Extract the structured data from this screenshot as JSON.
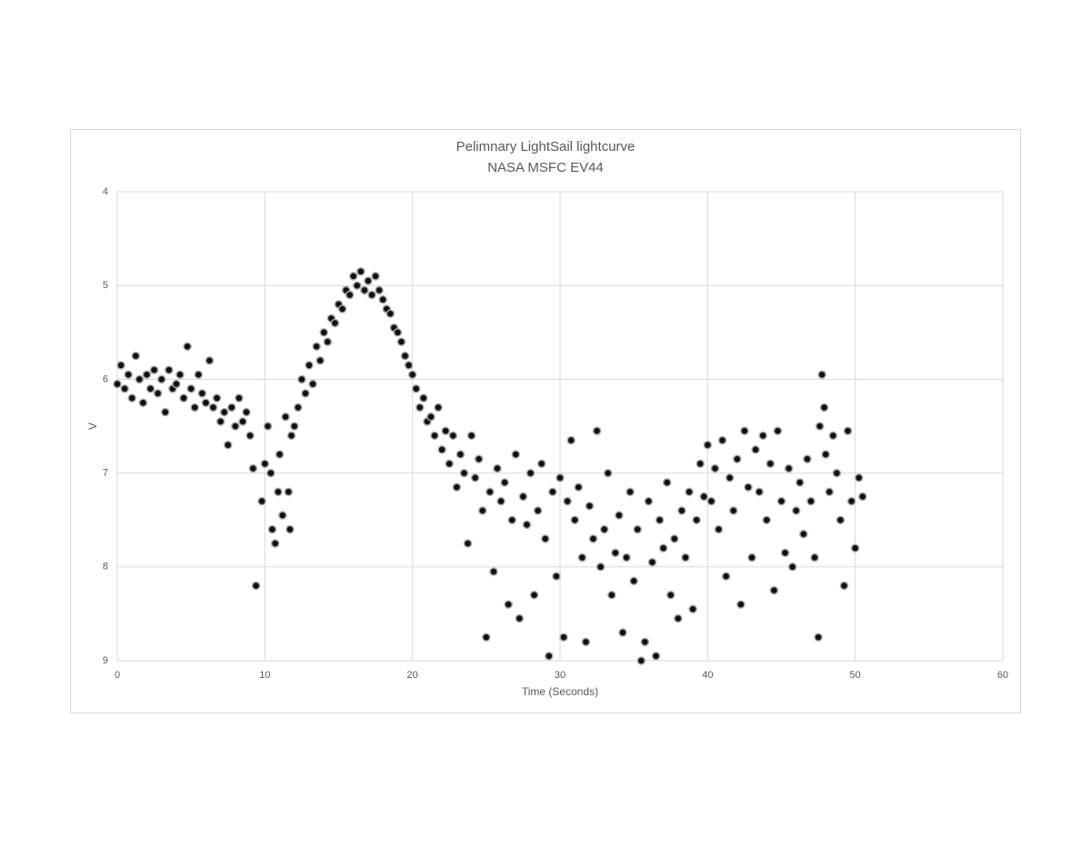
{
  "chart_data": {
    "type": "scatter",
    "title": "Pelimnary LightSail lightcurve",
    "subtitle": "NASA MSFC EV44",
    "x_label": "Time (Seconds)",
    "y_label": "V",
    "xlim": [
      0,
      60
    ],
    "xticks": [
      0,
      10,
      20,
      30,
      40,
      50,
      60
    ],
    "ylim": [
      4,
      9
    ],
    "yticks": [
      4,
      5,
      6,
      7,
      8,
      9
    ],
    "y_inverted": true,
    "grid": true,
    "color": "#111111",
    "edgecolor": "#a6a6a6",
    "x": [
      0.0,
      0.25,
      0.5,
      0.75,
      1.0,
      1.25,
      1.5,
      1.75,
      2.0,
      2.25,
      2.5,
      2.75,
      3.0,
      3.25,
      3.5,
      3.75,
      4.0,
      4.25,
      4.5,
      4.75,
      5.0,
      5.25,
      5.5,
      5.75,
      6.0,
      6.25,
      6.5,
      6.75,
      7.0,
      7.25,
      7.5,
      7.75,
      8.0,
      8.25,
      8.5,
      8.75,
      9.0,
      9.2,
      9.4,
      9.8,
      10.0,
      10.2,
      10.4,
      10.5,
      10.7,
      10.9,
      11.0,
      11.2,
      11.4,
      11.6,
      11.7,
      11.8,
      12.0,
      12.25,
      12.5,
      12.75,
      13.0,
      13.25,
      13.5,
      13.75,
      14.0,
      14.25,
      14.5,
      14.75,
      15.0,
      15.25,
      15.5,
      15.75,
      16.0,
      16.25,
      16.5,
      16.75,
      17.0,
      17.25,
      17.5,
      17.75,
      18.0,
      18.25,
      18.5,
      18.75,
      19.0,
      19.25,
      19.5,
      19.75,
      20.0,
      20.25,
      20.5,
      20.75,
      21.0,
      21.25,
      21.5,
      21.75,
      22.0,
      22.25,
      22.5,
      22.75,
      23.0,
      23.25,
      23.5,
      23.75,
      24.0,
      24.25,
      24.5,
      24.75,
      25.0,
      25.25,
      25.5,
      25.75,
      26.0,
      26.25,
      26.5,
      26.75,
      27.0,
      27.25,
      27.5,
      27.75,
      28.0,
      28.25,
      28.5,
      28.75,
      29.0,
      29.25,
      29.5,
      29.75,
      30.0,
      30.25,
      30.5,
      30.75,
      31.0,
      31.25,
      31.5,
      31.75,
      32.0,
      32.25,
      32.5,
      32.75,
      33.0,
      33.25,
      33.5,
      33.75,
      34.0,
      34.25,
      34.5,
      34.75,
      35.0,
      35.25,
      35.5,
      35.75,
      36.0,
      36.25,
      36.5,
      36.75,
      37.0,
      37.25,
      37.5,
      37.75,
      38.0,
      38.25,
      38.5,
      38.75,
      39.0,
      39.25,
      39.5,
      39.75,
      40.0,
      40.25,
      40.5,
      40.75,
      41.0,
      41.25,
      41.5,
      41.75,
      42.0,
      42.25,
      42.5,
      42.75,
      43.0,
      43.25,
      43.5,
      43.75,
      44.0,
      44.25,
      44.5,
      44.75,
      45.0,
      45.25,
      45.5,
      45.75,
      46.0,
      46.25,
      46.5,
      46.75,
      47.0,
      47.25,
      47.5,
      47.6,
      47.75,
      47.9,
      48.0,
      48.25,
      48.5,
      48.75,
      49.0,
      49.25,
      49.5,
      49.75,
      50.0,
      50.25,
      50.5
    ],
    "values": [
      6.05,
      5.85,
      6.1,
      5.95,
      6.2,
      5.75,
      6.0,
      6.25,
      5.95,
      6.1,
      5.9,
      6.15,
      6.0,
      6.35,
      5.9,
      6.1,
      6.05,
      5.95,
      6.2,
      5.65,
      6.1,
      6.3,
      5.95,
      6.15,
      6.25,
      5.8,
      6.3,
      6.2,
      6.45,
      6.35,
      6.7,
      6.3,
      6.5,
      6.2,
      6.45,
      6.35,
      6.6,
      6.95,
      8.2,
      7.3,
      6.9,
      6.5,
      7.0,
      7.6,
      7.75,
      7.2,
      6.8,
      7.45,
      6.4,
      7.2,
      7.6,
      6.6,
      6.5,
      6.3,
      6.0,
      6.15,
      5.85,
      6.05,
      5.65,
      5.8,
      5.5,
      5.6,
      5.35,
      5.4,
      5.2,
      5.25,
      5.05,
      5.1,
      4.9,
      5.0,
      4.85,
      5.05,
      4.95,
      5.1,
      4.9,
      5.05,
      5.15,
      5.25,
      5.3,
      5.45,
      5.5,
      5.6,
      5.75,
      5.85,
      5.95,
      6.1,
      6.3,
      6.2,
      6.45,
      6.4,
      6.6,
      6.3,
      6.75,
      6.55,
      6.9,
      6.6,
      7.15,
      6.8,
      7.0,
      7.75,
      6.6,
      7.05,
      6.85,
      7.4,
      8.75,
      7.2,
      8.05,
      6.95,
      7.3,
      7.1,
      8.4,
      7.5,
      6.8,
      8.55,
      7.25,
      7.55,
      7.0,
      8.3,
      7.4,
      6.9,
      7.7,
      8.95,
      7.2,
      8.1,
      7.05,
      8.75,
      7.3,
      6.65,
      7.5,
      7.15,
      7.9,
      8.8,
      7.35,
      7.7,
      6.55,
      8.0,
      7.6,
      7.0,
      8.3,
      7.85,
      7.45,
      8.7,
      7.9,
      7.2,
      8.15,
      7.6,
      9.0,
      8.8,
      7.3,
      7.95,
      8.95,
      7.5,
      7.8,
      7.1,
      8.3,
      7.7,
      8.55,
      7.4,
      7.9,
      7.2,
      8.45,
      7.5,
      6.9,
      7.25,
      6.7,
      7.3,
      6.95,
      7.6,
      6.65,
      8.1,
      7.05,
      7.4,
      6.85,
      8.4,
      6.55,
      7.15,
      7.9,
      6.75,
      7.2,
      6.6,
      7.5,
      6.9,
      8.25,
      6.55,
      7.3,
      7.85,
      6.95,
      8.0,
      7.4,
      7.1,
      7.65,
      6.85,
      7.3,
      7.9,
      8.75,
      6.5,
      5.95,
      6.3,
      6.8,
      7.2,
      6.6,
      7.0,
      7.5,
      8.2,
      6.55,
      7.3,
      7.8,
      7.05,
      7.25
    ]
  }
}
